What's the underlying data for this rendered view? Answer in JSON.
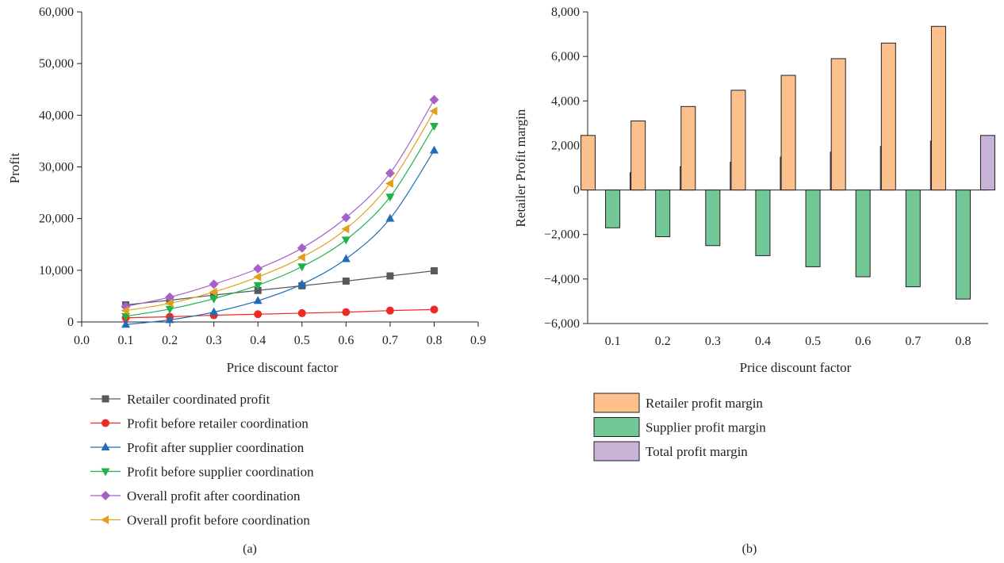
{
  "chart_data": [
    {
      "type": "line",
      "panel_label": "(a)",
      "xlabel": "Price discount factor",
      "ylabel": "Profit",
      "xlim": [
        0.0,
        0.9
      ],
      "ylim": [
        0,
        60000
      ],
      "xticks": [
        0.0,
        0.1,
        0.2,
        0.3,
        0.4,
        0.5,
        0.6,
        0.7,
        0.8,
        0.9
      ],
      "xtick_labels": [
        "0.0",
        "0.1",
        "0.2",
        "0.3",
        "0.4",
        "0.5",
        "0.6",
        "0.7",
        "0.8",
        "0.9"
      ],
      "yticks": [
        0,
        10000,
        20000,
        30000,
        40000,
        50000,
        60000
      ],
      "ytick_labels": [
        "0",
        "10,000",
        "20,000",
        "30,000",
        "40,000",
        "50,000",
        "60,000"
      ],
      "grid": false,
      "legend_position": "below",
      "x": [
        0.1,
        0.2,
        0.3,
        0.4,
        0.5,
        0.6,
        0.7,
        0.8
      ],
      "series": [
        {
          "name": "Retailer coordinated profit",
          "color": "#595959",
          "marker": "square",
          "curve": "straight",
          "values": [
            3300,
            4200,
            5200,
            6100,
            7000,
            7900,
            8900,
            9900
          ]
        },
        {
          "name": "Profit before retailer coordination",
          "color": "#ee2a24",
          "marker": "circle",
          "curve": "straight",
          "values": [
            800,
            1000,
            1300,
            1500,
            1700,
            1900,
            2200,
            2400
          ]
        },
        {
          "name": "Profit after supplier coordination",
          "color": "#1f6eb5",
          "marker": "triangle-up",
          "curve": "smooth",
          "values": [
            -500,
            400,
            1900,
            4100,
            7300,
            12200,
            20000,
            33200
          ]
        },
        {
          "name": "Profit before supplier coordination",
          "color": "#1db24b",
          "marker": "triangle-down",
          "curve": "smooth",
          "values": [
            1100,
            2500,
            4500,
            7100,
            10700,
            15900,
            24200,
            37900
          ]
        },
        {
          "name": "Overall profit after coordination",
          "color": "#a661c6",
          "marker": "diamond",
          "curve": "smooth",
          "values": [
            3000,
            4800,
            7300,
            10300,
            14300,
            20200,
            28800,
            43000
          ]
        },
        {
          "name": "Overall profit before coordination",
          "color": "#e0a01a",
          "marker": "triangle-left",
          "curve": "smooth",
          "values": [
            2200,
            3600,
            5800,
            8700,
            12500,
            18000,
            26800,
            40800
          ]
        }
      ]
    },
    {
      "type": "bar",
      "panel_label": "(b)",
      "xlabel": "Price discount factor",
      "ylabel": "Retailer Profit margin",
      "ylim": [
        -6000,
        8000
      ],
      "yticks": [
        -6000,
        -4000,
        -2000,
        0,
        2000,
        4000,
        6000,
        8000
      ],
      "ytick_labels": [
        "−6,000",
        "−4,000",
        "−2,000",
        "0",
        "2,000",
        "4,000",
        "6,000",
        "8,000"
      ],
      "grid": false,
      "legend_position": "below",
      "categories": [
        "0.1",
        "0.2",
        "0.3",
        "0.4",
        "0.5",
        "0.6",
        "0.7",
        "0.8"
      ],
      "series": [
        {
          "name": "Retailer profit margin",
          "color": "#fbc08c",
          "values": [
            2450,
            3100,
            3750,
            4480,
            5150,
            5900,
            6600,
            7350
          ]
        },
        {
          "name": "Supplier profit margin",
          "color": "#72c796",
          "values": [
            -1700,
            -2100,
            -2500,
            -2950,
            -3450,
            -3900,
            -4350,
            -4900
          ]
        },
        {
          "name": "Total profit margin",
          "color": "#cab2d6",
          "values": [
            780,
            1050,
            1250,
            1480,
            1700,
            1950,
            2200,
            2450
          ]
        }
      ]
    }
  ]
}
